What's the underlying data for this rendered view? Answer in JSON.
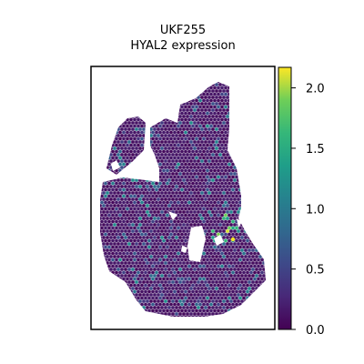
{
  "figure": {
    "title_line1": "UKF255",
    "title_line2": "HYAL2 expression"
  },
  "chart_data": {
    "type": "scatter",
    "title": "UKF255 HYAL2 expression",
    "xlabel": "",
    "ylabel": "",
    "grid": false,
    "colormap": "viridis",
    "colorbar": {
      "range": [
        0.0,
        2.17
      ],
      "ticks": [
        0.0,
        0.5,
        1.0,
        1.5,
        2.0
      ],
      "tick_labels": [
        "0.0",
        "0.5",
        "1.0",
        "1.5",
        "2.0"
      ]
    },
    "description_values": {
      "n_spots_approx": 2600,
      "dominant_value": 0.0,
      "max_value": 2.15
    },
    "series": [
      {
        "values_summary": "spatial spots; most near 0.0, scattered 0.3-1.2, few up to ~2.1 on right side"
      }
    ]
  },
  "colors": {
    "low": "#440154",
    "mid": "#21918c",
    "high": "#fde725",
    "axis": "#000000"
  }
}
